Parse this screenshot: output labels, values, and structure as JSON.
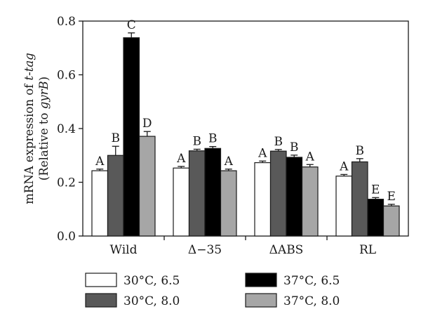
{
  "chart_data": {
    "type": "bar",
    "categories": [
      "Wild",
      "Δ−35",
      "ΔABS",
      "RL"
    ],
    "series": [
      {
        "name": "30°C, 6.5",
        "color": "#ffffff",
        "values": [
          0.243,
          0.253,
          0.273,
          0.223
        ],
        "errors": [
          0.006,
          0.006,
          0.006,
          0.006
        ],
        "letters": [
          "A",
          "A",
          "A",
          "A"
        ]
      },
      {
        "name": "30°C, 8.0",
        "color": "#595959",
        "values": [
          0.3,
          0.317,
          0.316,
          0.276
        ],
        "errors": [
          0.034,
          0.006,
          0.006,
          0.012
        ],
        "letters": [
          "B",
          "B",
          "B",
          "B"
        ]
      },
      {
        "name": "37°C, 6.5",
        "color": "#000000",
        "values": [
          0.738,
          0.326,
          0.293,
          0.137
        ],
        "errors": [
          0.018,
          0.007,
          0.008,
          0.006
        ],
        "letters": [
          "C",
          "B",
          "B",
          "E"
        ]
      },
      {
        "name": "37°C, 8.0",
        "color": "#a6a6a6",
        "values": [
          0.371,
          0.243,
          0.257,
          0.112
        ],
        "errors": [
          0.018,
          0.006,
          0.009,
          0.006
        ],
        "letters": [
          "D",
          "A",
          "A",
          "E"
        ]
      }
    ],
    "ylabel_line1_prefix": "mRNA expression of ",
    "ylabel_line1_italic": "t-tag",
    "ylabel_line2_prefix": "(Relative to ",
    "ylabel_line2_italic": "gyrB",
    "ylabel_line2_suffix": ")",
    "ylim": [
      0,
      0.8
    ],
    "yticks": [
      "0.0",
      "0.2",
      "0.4",
      "0.6",
      "0.8"
    ],
    "grid": false,
    "legend_position": "bottom"
  }
}
